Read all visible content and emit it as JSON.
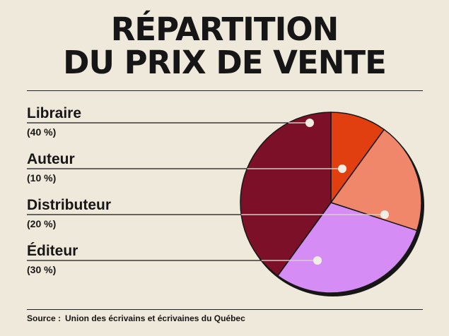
{
  "title": {
    "line1": "RÉPARTITION",
    "line2": "DU PRIX DE VENTE"
  },
  "source": {
    "label": "Source :",
    "text": "Union des écrivains et écrivaines du Québec"
  },
  "colors": {
    "background": "#efe9dc",
    "outline": "#161616",
    "leader": "#f3eee4"
  },
  "chart_data": {
    "type": "pie",
    "start_angle_deg": 0,
    "direction": "clockwise",
    "slices": [
      {
        "label": "Auteur",
        "value_label": "(10 %)",
        "value": 10,
        "color": "#e23f10"
      },
      {
        "label": "Distributeur",
        "value_label": "(20 %)",
        "value": 20,
        "color": "#f0876a"
      },
      {
        "label": "Éditeur",
        "value_label": "(30 %)",
        "value": 30,
        "color": "#d58cf5"
      },
      {
        "label": "Libraire",
        "value_label": "(40 %)",
        "value": 40,
        "color": "#7b1028"
      }
    ],
    "legend_order": [
      "Libraire",
      "Auteur",
      "Distributeur",
      "Éditeur"
    ],
    "legend_position": "left"
  }
}
